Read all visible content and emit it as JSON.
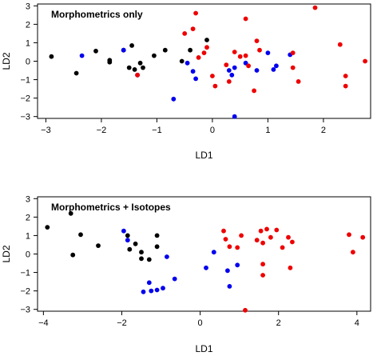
{
  "colors": {
    "black": "#000000",
    "blue": "#0000ee",
    "red": "#ee0000"
  },
  "chart_data": [
    {
      "type": "scatter",
      "title": "Morphometrics only",
      "xlabel": "LD1",
      "ylabel": "LD2",
      "xlim": [
        -3.15,
        2.85
      ],
      "ylim": [
        -3.1,
        3.1
      ],
      "xticks": [
        -3,
        -2,
        -1,
        0,
        1,
        2
      ],
      "yticks": [
        -3,
        -2,
        -1,
        0,
        1,
        2,
        3
      ],
      "grid": false,
      "legend": "none",
      "series": [
        {
          "color": "black",
          "points": [
            [
              -2.9,
              0.25
            ],
            [
              -2.45,
              -0.65
            ],
            [
              -2.1,
              0.55
            ],
            [
              -1.85,
              0.05
            ],
            [
              -1.85,
              -0.05
            ],
            [
              -1.6,
              0.6
            ],
            [
              -1.45,
              0.85
            ],
            [
              -1.5,
              -0.35
            ],
            [
              -1.4,
              -0.45
            ],
            [
              -1.3,
              -0.1
            ],
            [
              -1.25,
              -0.35
            ],
            [
              -1.05,
              0.3
            ],
            [
              -0.85,
              0.6
            ],
            [
              -0.55,
              0.0
            ],
            [
              -0.4,
              0.6
            ],
            [
              -0.1,
              1.15
            ]
          ]
        },
        {
          "color": "blue",
          "points": [
            [
              -2.35,
              0.3
            ],
            [
              -1.6,
              0.6
            ],
            [
              -1.35,
              -0.75
            ],
            [
              -0.7,
              -2.05
            ],
            [
              -0.45,
              -0.1
            ],
            [
              -0.35,
              -0.55
            ],
            [
              -0.3,
              -0.95
            ],
            [
              0.3,
              -0.5
            ],
            [
              0.35,
              -0.75
            ],
            [
              0.4,
              -0.35
            ],
            [
              0.4,
              -3.0
            ],
            [
              0.6,
              -0.1
            ],
            [
              0.8,
              -0.5
            ],
            [
              1.0,
              0.45
            ],
            [
              1.1,
              -0.45
            ],
            [
              1.15,
              -0.25
            ],
            [
              1.4,
              0.35
            ]
          ]
        },
        {
          "color": "red",
          "points": [
            [
              -1.35,
              -0.75
            ],
            [
              -0.5,
              1.5
            ],
            [
              -0.35,
              1.75
            ],
            [
              -0.3,
              2.6
            ],
            [
              -0.25,
              0.2
            ],
            [
              -0.15,
              0.45
            ],
            [
              -0.1,
              0.75
            ],
            [
              0.0,
              -0.8
            ],
            [
              0.05,
              -1.35
            ],
            [
              0.25,
              -0.2
            ],
            [
              0.3,
              -1.1
            ],
            [
              0.4,
              0.5
            ],
            [
              0.5,
              0.25
            ],
            [
              0.6,
              2.3
            ],
            [
              0.6,
              0.3
            ],
            [
              0.65,
              -0.25
            ],
            [
              0.75,
              -1.6
            ],
            [
              0.8,
              1.1
            ],
            [
              0.85,
              0.6
            ],
            [
              1.45,
              0.45
            ],
            [
              1.45,
              -0.35
            ],
            [
              1.55,
              -1.1
            ],
            [
              1.85,
              2.9
            ],
            [
              2.3,
              0.9
            ],
            [
              2.4,
              -0.8
            ],
            [
              2.4,
              -1.35
            ],
            [
              2.75,
              0.0
            ]
          ]
        }
      ]
    },
    {
      "type": "scatter",
      "title": "Morphometrics + Isotopes",
      "xlabel": "LD1",
      "ylabel": "LD2",
      "xlim": [
        -4.15,
        4.35
      ],
      "ylim": [
        -3.1,
        3.1
      ],
      "xticks": [
        -4,
        -2,
        0,
        2,
        4
      ],
      "yticks": [
        -3,
        -2,
        -1,
        0,
        1,
        2,
        3
      ],
      "grid": false,
      "legend": "none",
      "series": [
        {
          "color": "black",
          "points": [
            [
              -3.9,
              1.45
            ],
            [
              -3.3,
              2.2
            ],
            [
              -3.25,
              -0.05
            ],
            [
              -3.05,
              1.05
            ],
            [
              -2.6,
              0.45
            ],
            [
              -1.85,
              1.0
            ],
            [
              -1.8,
              0.25
            ],
            [
              -1.65,
              0.55
            ],
            [
              -1.5,
              0.1
            ],
            [
              -1.5,
              -0.25
            ],
            [
              -1.3,
              -0.3
            ],
            [
              -1.1,
              1.0
            ],
            [
              -1.1,
              0.4
            ]
          ]
        },
        {
          "color": "blue",
          "points": [
            [
              -1.95,
              1.25
            ],
            [
              -1.85,
              0.75
            ],
            [
              -1.45,
              -2.05
            ],
            [
              -1.3,
              -1.55
            ],
            [
              -1.25,
              -2.0
            ],
            [
              -1.1,
              -1.95
            ],
            [
              -0.95,
              -1.85
            ],
            [
              -0.85,
              -0.15
            ],
            [
              -0.65,
              -1.35
            ],
            [
              0.15,
              -0.75
            ],
            [
              0.35,
              0.1
            ],
            [
              0.7,
              -0.9
            ],
            [
              0.75,
              -1.75
            ],
            [
              0.95,
              -0.6
            ]
          ]
        },
        {
          "color": "red",
          "points": [
            [
              0.6,
              1.25
            ],
            [
              0.65,
              0.8
            ],
            [
              0.75,
              0.4
            ],
            [
              0.95,
              0.35
            ],
            [
              1.05,
              1.0
            ],
            [
              1.15,
              -3.05
            ],
            [
              1.45,
              0.75
            ],
            [
              1.55,
              1.25
            ],
            [
              1.6,
              0.6
            ],
            [
              1.6,
              -0.55
            ],
            [
              1.6,
              -1.15
            ],
            [
              1.7,
              1.35
            ],
            [
              1.8,
              0.9
            ],
            [
              1.95,
              1.3
            ],
            [
              2.1,
              0.35
            ],
            [
              2.25,
              0.9
            ],
            [
              2.3,
              -0.75
            ],
            [
              2.35,
              0.65
            ],
            [
              3.8,
              1.05
            ],
            [
              3.9,
              0.1
            ],
            [
              4.15,
              0.9
            ]
          ]
        }
      ]
    }
  ]
}
